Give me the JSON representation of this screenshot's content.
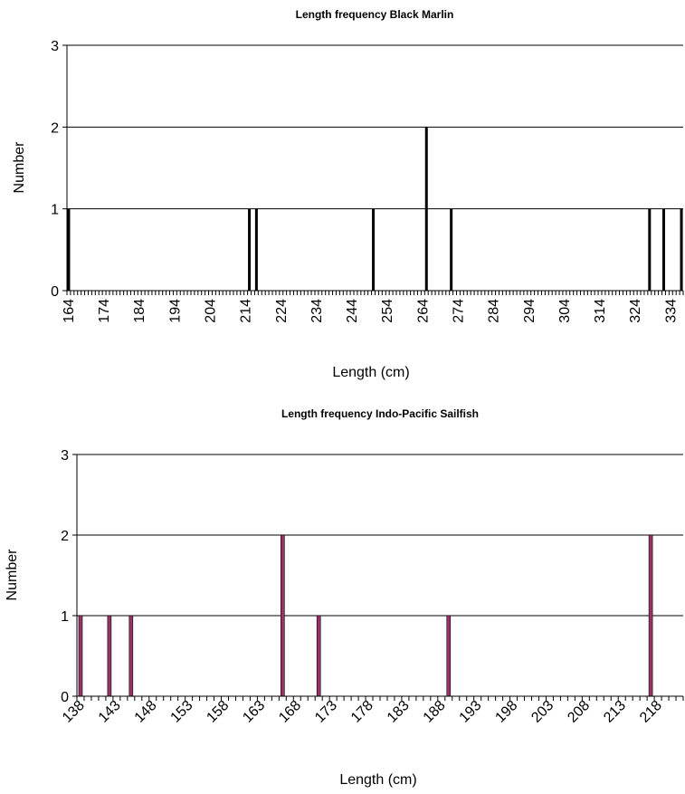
{
  "chart_data": [
    {
      "type": "bar",
      "title": "Length frequency Black Marlin",
      "xlabel": "Length (cm)",
      "ylabel": "Number",
      "x_range": [
        164,
        337
      ],
      "x_tick_labels": [
        "164",
        "174",
        "184",
        "194",
        "204",
        "214",
        "224",
        "234",
        "244",
        "254",
        "264",
        "274",
        "284",
        "294",
        "304",
        "314",
        "324",
        "334"
      ],
      "ylim": [
        0,
        3
      ],
      "y_ticks": [
        0,
        1,
        2,
        3
      ],
      "grid": true,
      "bar_color": "#000000",
      "x": [
        164,
        215,
        217,
        250,
        265,
        272,
        328,
        332,
        337
      ],
      "values": [
        1,
        1,
        1,
        1,
        2,
        1,
        1,
        1,
        1
      ]
    },
    {
      "type": "bar",
      "title": "Length frequency Indo-Pacific Sailfish",
      "xlabel": "Length (cm)",
      "ylabel": "Number",
      "x_range": [
        138,
        221
      ],
      "x_tick_labels": [
        "138",
        "143",
        "148",
        "153",
        "158",
        "163",
        "168",
        "173",
        "178",
        "183",
        "188",
        "193",
        "198",
        "203",
        "208",
        "213",
        "218"
      ],
      "ylim": [
        0,
        3
      ],
      "y_ticks": [
        0,
        1,
        2,
        3
      ],
      "grid": true,
      "bar_color": "#993366",
      "x": [
        138,
        142,
        145,
        166,
        171,
        189,
        217
      ],
      "values": [
        1,
        1,
        1,
        2,
        1,
        1,
        2
      ]
    }
  ]
}
